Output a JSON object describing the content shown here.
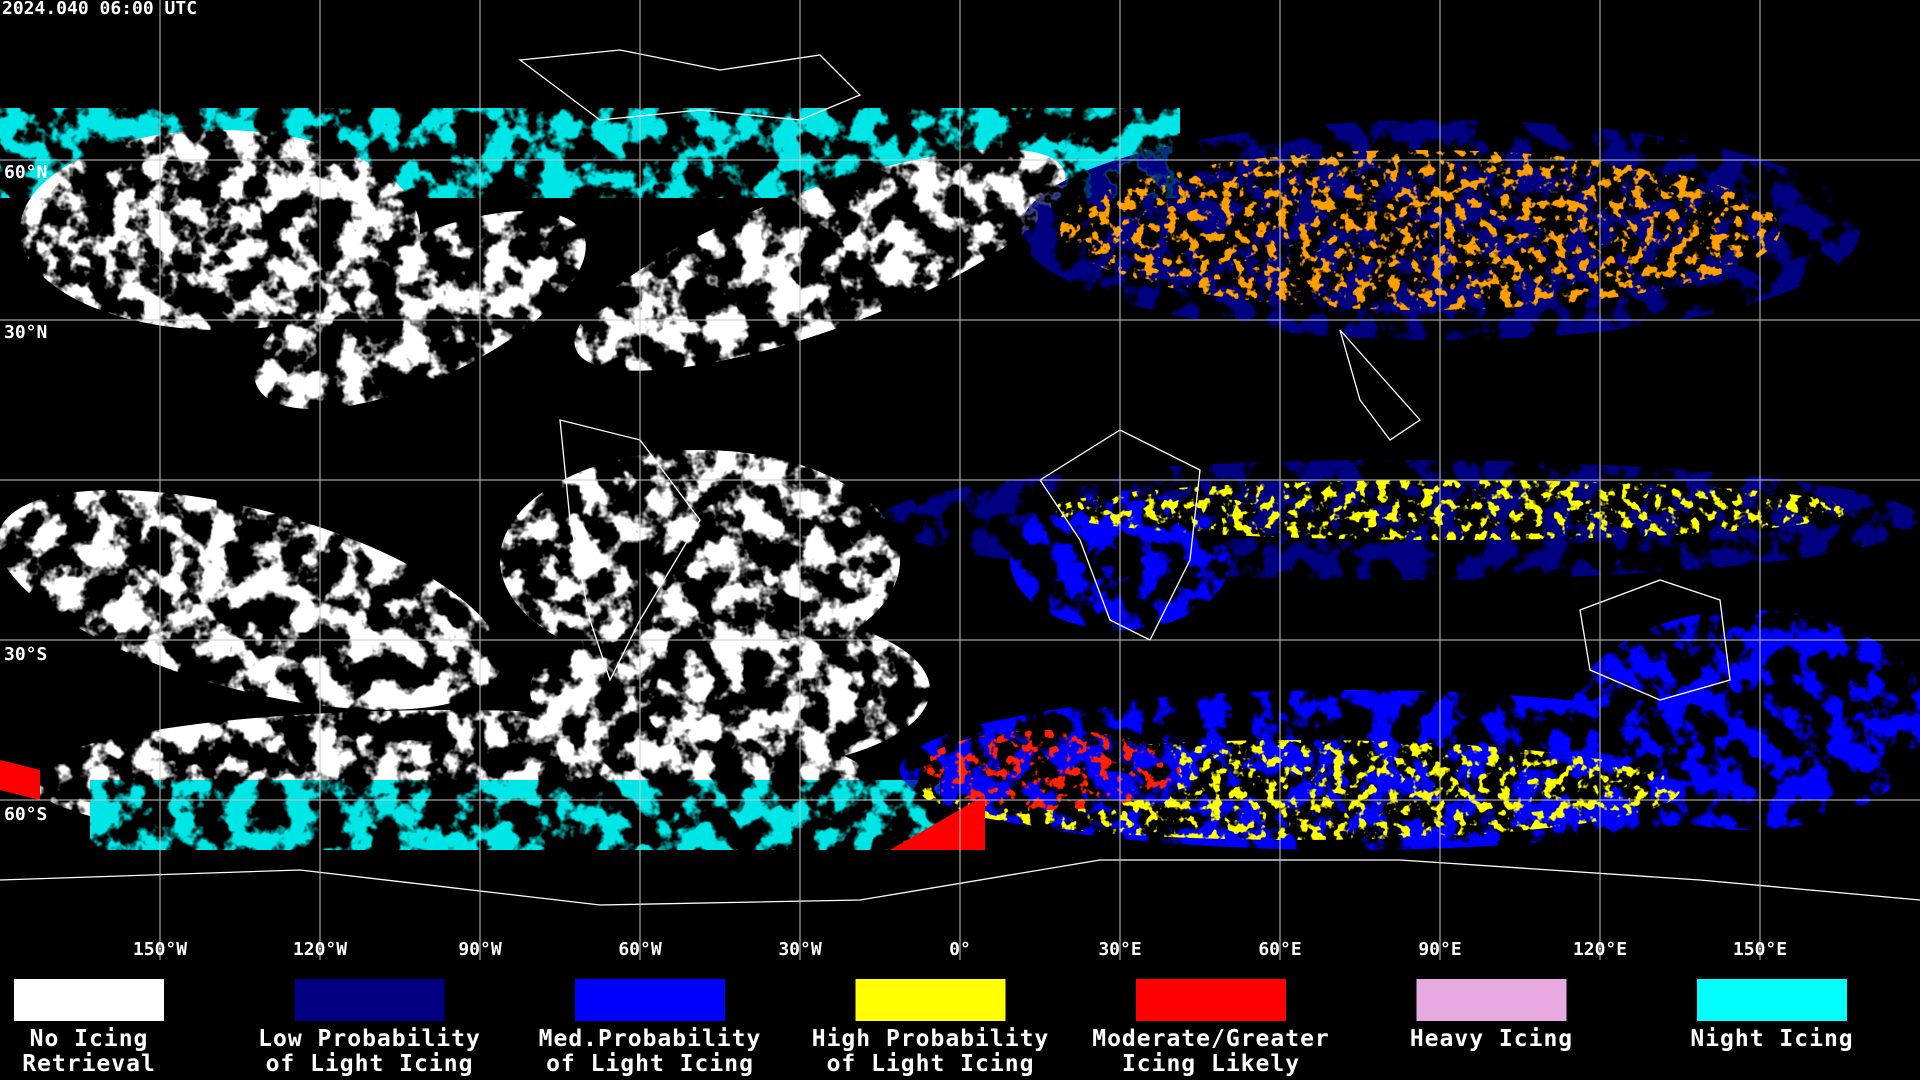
{
  "header": {
    "timestamp": "2024.040 06:00 UTC"
  },
  "map": {
    "longitude_labels": [
      "150°W",
      "120°W",
      "90°W",
      "60°W",
      "30°W",
      "0°",
      "30°E",
      "60°E",
      "90°E",
      "120°E",
      "150°E"
    ],
    "latitude_labels": [
      "60°N",
      "30°N",
      "30°S",
      "60°S"
    ]
  },
  "legend": [
    {
      "color": "#ffffff",
      "lines": [
        "No Icing",
        "Retrieval"
      ]
    },
    {
      "color": "#000080",
      "lines": [
        "Low Probability",
        "of Light Icing"
      ]
    },
    {
      "color": "#0000ff",
      "lines": [
        "Med.Probability",
        "of Light Icing"
      ]
    },
    {
      "color": "#ffff00",
      "lines": [
        "High Probability",
        "of Light Icing"
      ]
    },
    {
      "color": "#ff0000",
      "lines": [
        "Moderate/Greater",
        "Icing Likely"
      ]
    },
    {
      "color": "#e8a8e0",
      "lines": [
        "Heavy Icing"
      ]
    },
    {
      "color": "#00ffff",
      "lines": [
        "Night Icing"
      ]
    }
  ]
}
